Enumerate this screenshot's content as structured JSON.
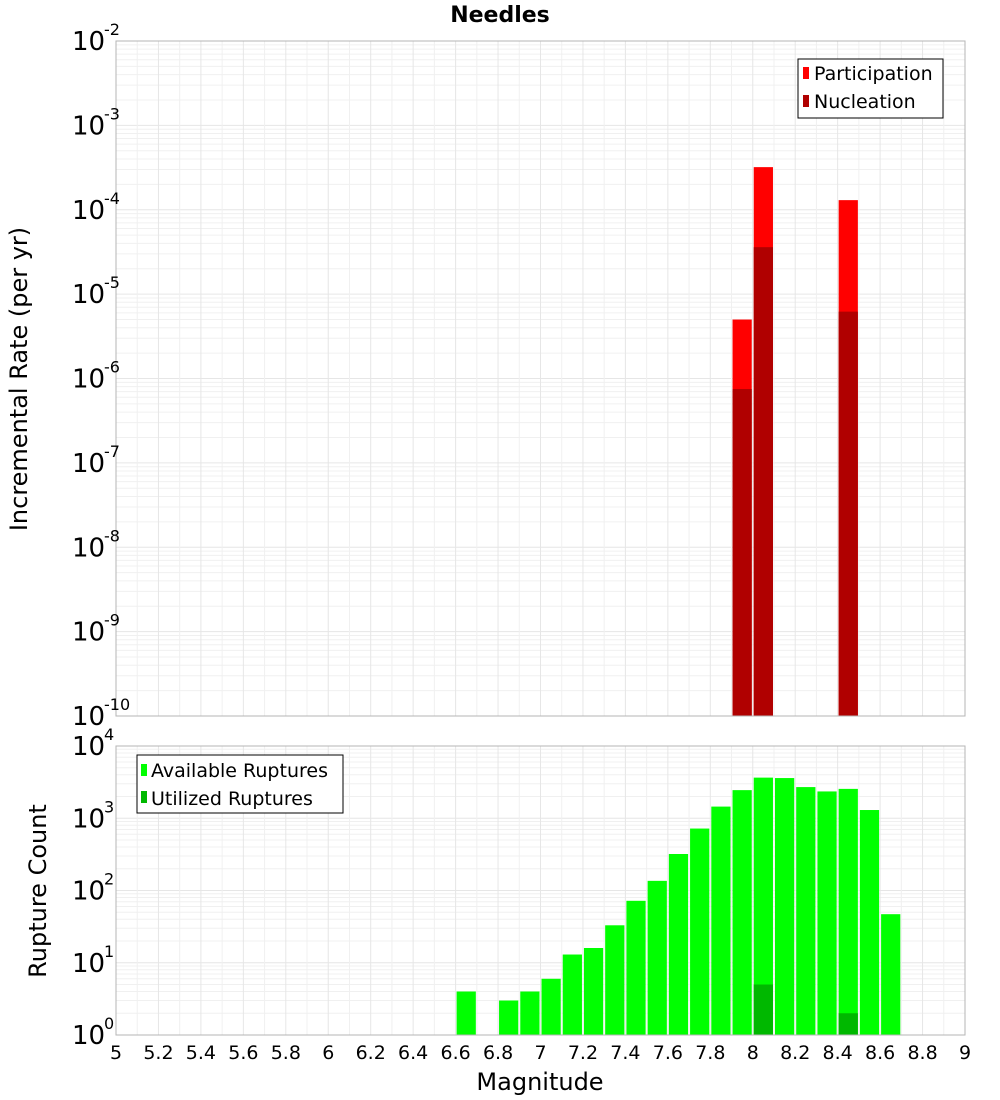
{
  "chart_data": [
    {
      "type": "bar",
      "title": "Needles",
      "xlabel": "",
      "ylabel": "Incremental Rate (per yr)",
      "x_axis": {
        "min": 5.0,
        "max": 9.0,
        "scale": "linear"
      },
      "y_axis": {
        "scale": "log",
        "ylim_exp": [
          -10,
          -2
        ]
      },
      "grid": true,
      "legend_position": "top-right",
      "x": [
        7.95,
        8.05,
        8.45
      ],
      "series": [
        {
          "name": "Participation",
          "color": "#ff0000",
          "values": [
            5e-06,
            0.00032,
            0.00013
          ]
        },
        {
          "name": "Nucleation",
          "color": "#b00000",
          "values": [
            7.5e-07,
            3.6e-05,
            6.2e-06
          ]
        }
      ]
    },
    {
      "type": "bar",
      "title": "",
      "xlabel": "Magnitude",
      "ylabel": "Rupture Count",
      "x_axis": {
        "min": 5.0,
        "max": 9.0,
        "scale": "linear",
        "ticks": [
          "5",
          "5.2",
          "5.4",
          "5.6",
          "5.8",
          "6",
          "6.2",
          "6.4",
          "6.6",
          "6.8",
          "7",
          "7.2",
          "7.4",
          "7.6",
          "7.8",
          "8",
          "8.2",
          "8.4",
          "8.6",
          "8.8",
          "9"
        ]
      },
      "y_axis": {
        "scale": "log",
        "ylim_exp": [
          0,
          4
        ]
      },
      "grid": true,
      "legend_position": "top-left",
      "x": [
        6.65,
        6.75,
        6.85,
        6.95,
        7.05,
        7.15,
        7.25,
        7.35,
        7.45,
        7.55,
        7.65,
        7.75,
        7.85,
        7.95,
        8.05,
        8.15,
        8.25,
        8.35,
        8.45,
        8.55,
        8.65
      ],
      "series": [
        {
          "name": "Available Ruptures",
          "color": "#00ff00",
          "values": [
            4,
            0,
            3,
            4,
            6,
            13,
            16,
            33,
            72,
            136,
            320,
            720,
            1450,
            2450,
            3650,
            3600,
            2700,
            2350,
            2550,
            1300,
            47
          ]
        },
        {
          "name": "Utilized Ruptures",
          "color": "#00b800",
          "values": [
            0,
            0,
            0,
            0,
            0,
            0,
            0,
            0,
            0,
            0,
            0,
            0,
            0,
            1,
            5,
            0,
            0,
            0,
            2,
            0,
            0
          ]
        }
      ]
    }
  ]
}
